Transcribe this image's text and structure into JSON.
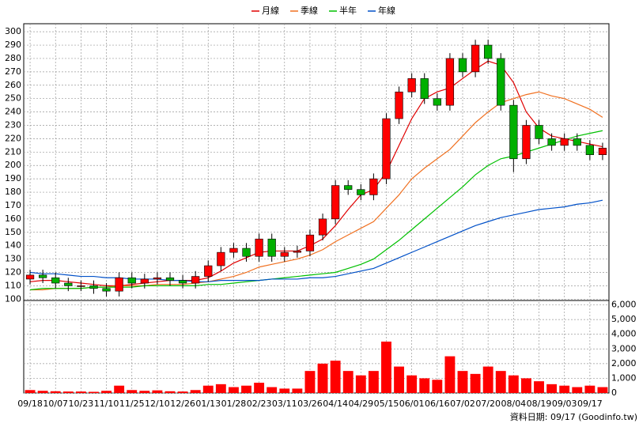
{
  "chart_data": {
    "type": "candlestick",
    "categories": [
      "09/18",
      null,
      "10/07",
      null,
      "10/23",
      null,
      "11/10",
      null,
      "11/25",
      null,
      "12/10",
      null,
      "12/26",
      null,
      "01/13",
      null,
      "01/28",
      null,
      "02/23",
      null,
      "03/11",
      null,
      "03/26",
      null,
      "04/14",
      null,
      "04/29",
      null,
      "05/15",
      null,
      "06/01",
      null,
      "06/16",
      null,
      "07/02",
      null,
      "07/20",
      null,
      "08/04",
      null,
      "08/19",
      null,
      "09/03",
      null,
      "09/17",
      null
    ],
    "open": [
      115,
      118,
      116,
      112,
      110,
      110,
      108,
      106,
      116,
      112,
      115,
      116,
      114,
      112,
      117,
      125,
      135,
      138,
      132,
      145,
      132,
      135,
      136,
      148,
      160,
      185,
      182,
      178,
      190,
      235,
      255,
      265,
      250,
      245,
      280,
      270,
      290,
      280,
      245,
      205,
      230,
      220,
      215,
      220,
      215,
      208
    ],
    "high": [
      122,
      122,
      120,
      116,
      114,
      114,
      112,
      120,
      120,
      119,
      120,
      120,
      118,
      121,
      129,
      139,
      142,
      142,
      149,
      149,
      139,
      140,
      152,
      164,
      189,
      189,
      186,
      194,
      239,
      259,
      269,
      269,
      254,
      284,
      284,
      294,
      294,
      284,
      249,
      234,
      234,
      224,
      224,
      224,
      219,
      217
    ],
    "low": [
      111,
      112,
      108,
      106,
      106,
      104,
      102,
      102,
      108,
      108,
      111,
      110,
      108,
      108,
      113,
      121,
      131,
      128,
      128,
      128,
      128,
      131,
      132,
      144,
      156,
      178,
      174,
      174,
      186,
      231,
      251,
      246,
      241,
      241,
      266,
      266,
      276,
      241,
      195,
      201,
      216,
      211,
      211,
      211,
      204,
      204
    ],
    "close": [
      118,
      116,
      112,
      110,
      110,
      108,
      106,
      116,
      112,
      115,
      116,
      114,
      112,
      117,
      125,
      135,
      138,
      132,
      145,
      132,
      135,
      136,
      148,
      160,
      185,
      182,
      178,
      190,
      235,
      255,
      265,
      250,
      245,
      280,
      270,
      290,
      280,
      245,
      205,
      230,
      220,
      215,
      220,
      215,
      208,
      213
    ],
    "up_color": "#ff0000",
    "down_color": "#00b000",
    "series": [
      {
        "name": "月線",
        "color": "#e00000",
        "values": [
          113,
          114,
          114,
          113,
          112,
          111,
          110,
          110,
          111,
          112,
          113,
          114,
          114,
          114,
          116,
          121,
          127,
          131,
          135,
          136,
          136,
          136,
          140,
          145,
          155,
          167,
          178,
          182,
          195,
          215,
          235,
          250,
          255,
          258,
          265,
          272,
          278,
          275,
          262,
          240,
          228,
          222,
          220,
          218,
          216,
          214
        ]
      },
      {
        "name": "季線",
        "color": "#f07020",
        "values": [
          107,
          107,
          108,
          108,
          108,
          109,
          109,
          110,
          110,
          110,
          111,
          111,
          111,
          112,
          113,
          115,
          117,
          120,
          124,
          126,
          128,
          130,
          133,
          137,
          143,
          148,
          153,
          158,
          168,
          178,
          190,
          198,
          205,
          212,
          222,
          232,
          240,
          247,
          250,
          253,
          255,
          252,
          250,
          246,
          242,
          236
        ]
      },
      {
        "name": "半年",
        "color": "#00c000",
        "values": [
          107,
          108,
          108,
          108,
          108,
          109,
          109,
          109,
          109,
          110,
          110,
          110,
          110,
          110,
          111,
          111,
          112,
          113,
          114,
          115,
          116,
          117,
          118,
          119,
          120,
          123,
          126,
          130,
          137,
          144,
          152,
          160,
          168,
          176,
          184,
          193,
          200,
          205,
          207,
          210,
          213,
          216,
          219,
          222,
          224,
          226
        ]
      },
      {
        "name": "年線",
        "color": "#0050c8",
        "values": [
          120,
          119,
          119,
          118,
          117,
          117,
          116,
          116,
          115,
          115,
          115,
          114,
          114,
          113,
          113,
          114,
          114,
          114,
          114,
          115,
          115,
          115,
          116,
          116,
          117,
          119,
          121,
          123,
          127,
          131,
          135,
          139,
          143,
          147,
          151,
          155,
          158,
          161,
          163,
          165,
          167,
          168,
          169,
          171,
          172,
          174
        ]
      }
    ],
    "ylim": [
      99,
      306
    ],
    "yticks": [
      100,
      110,
      120,
      130,
      140,
      150,
      160,
      170,
      180,
      190,
      200,
      210,
      220,
      230,
      240,
      250,
      260,
      270,
      280,
      290,
      300
    ],
    "volume": [
      200,
      150,
      120,
      100,
      100,
      80,
      150,
      500,
      200,
      150,
      180,
      120,
      100,
      200,
      500,
      600,
      400,
      500,
      700,
      400,
      300,
      300,
      1500,
      2000,
      2200,
      1500,
      1200,
      1500,
      3500,
      1800,
      1200,
      1000,
      900,
      2500,
      1500,
      1300,
      1800,
      1500,
      1200,
      1000,
      800,
      600,
      500,
      400,
      500,
      400
    ],
    "volume_color": "#ff0000",
    "y2lim": [
      0,
      6300
    ],
    "y2ticks": [
      0,
      {
        "value": 1000,
        "label": "1,000"
      },
      {
        "value": 2000,
        "label": "2,000"
      },
      {
        "value": 3000,
        "label": "3,000"
      },
      {
        "value": 4000,
        "label": "4,000"
      },
      {
        "value": 5000,
        "label": "5,000"
      },
      {
        "value": 6000,
        "label": "6,000"
      }
    ],
    "grid": true,
    "legend": "top",
    "footer": "資料日期: 09/17 (Goodinfo.tw)"
  }
}
